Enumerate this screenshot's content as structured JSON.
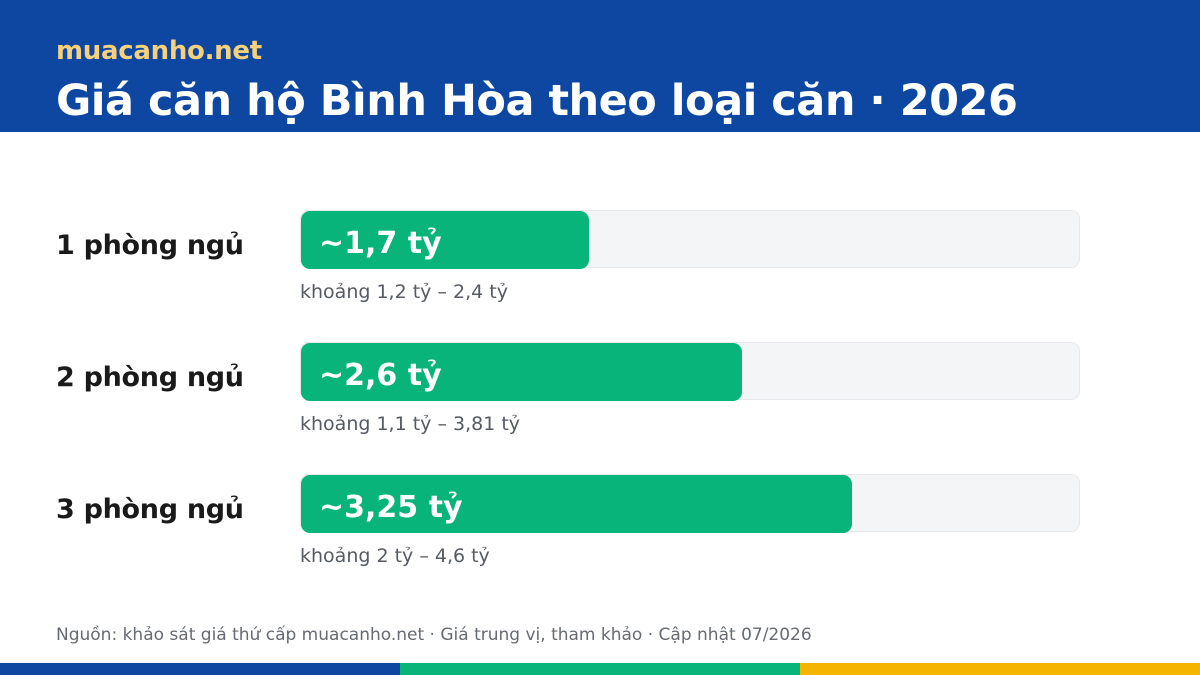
{
  "header": {
    "brand": "muacanho.net",
    "title": "Giá căn hộ Bình Hòa theo loại căn · 2026"
  },
  "colors": {
    "header_bg": "#0d47a1",
    "brand_text": "#f6d07a",
    "bar_fill": "#08b47a",
    "track": "#f4f5f7",
    "stripe": [
      "#0d47a1",
      "#08b47a",
      "#f4b400"
    ]
  },
  "chart_data": {
    "type": "bar",
    "orientation": "horizontal",
    "unit": "tỷ",
    "xlim": [
      0,
      4.6
    ],
    "categories": [
      "1 phòng ngủ",
      "2 phòng ngủ",
      "3 phòng ngủ"
    ],
    "values": [
      1.7,
      2.6,
      3.25
    ],
    "value_labels": [
      "~1,7 tỷ",
      "~2,6 tỷ",
      "~3,25 tỷ"
    ],
    "ranges": [
      {
        "low": 1.2,
        "high": 2.4,
        "label": "khoảng 1,2 tỷ – 2,4 tỷ"
      },
      {
        "low": 1.1,
        "high": 3.81,
        "label": "khoảng 1,1 tỷ – 3,81 tỷ"
      },
      {
        "low": 2,
        "high": 4.6,
        "label": "khoảng 2 tỷ – 4,6 tỷ"
      }
    ]
  },
  "footer": {
    "source": "Nguồn: khảo sát giá thứ cấp muacanho.net · Giá trung vị, tham khảo · Cập nhật 07/2026"
  }
}
